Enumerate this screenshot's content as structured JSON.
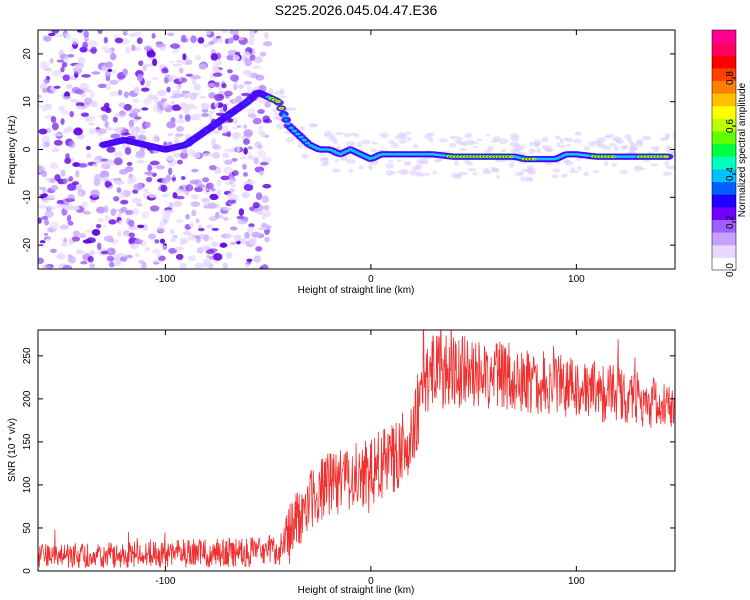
{
  "title": "S225.2026.045.04.47.E36",
  "chart_data": [
    {
      "type": "heatmap",
      "name": "spectrogram",
      "xlabel": "Height of straight line (km)",
      "ylabel": "Frequency (Hz)",
      "xlim": [
        -162,
        148
      ],
      "ylim": [
        -25,
        25
      ],
      "xticks": [
        -100,
        0,
        100
      ],
      "xtick_labels": [
        "-100",
        "0",
        "100"
      ],
      "yticks": [
        20,
        10,
        0,
        -10,
        -20
      ],
      "ytick_labels": [
        "20",
        "10",
        "0",
        "-10",
        "-20"
      ],
      "ridge": {
        "x": [
          -130,
          -120,
          -110,
          -100,
          -90,
          -80,
          -70,
          -60,
          -55,
          -50,
          -45,
          -40,
          -35,
          -30,
          -25,
          -20,
          -15,
          -10,
          -5,
          0,
          5,
          10,
          20,
          30,
          40,
          50,
          60,
          70,
          75,
          80,
          85,
          90,
          95,
          100,
          110,
          120,
          130,
          145
        ],
        "y": [
          1,
          2,
          1,
          0,
          1,
          4,
          7,
          10,
          12,
          11,
          10,
          5,
          3,
          1,
          0,
          0,
          -1,
          0,
          -1,
          -2,
          -1,
          -1,
          -1,
          -1,
          -1.5,
          -1.5,
          -1.5,
          -1.5,
          -2,
          -2,
          -2,
          -2,
          -1,
          -1,
          -1.5,
          -1.5,
          -1.5,
          -1.5
        ]
      },
      "colorbar": {
        "label": "Normalized spectral amplitude",
        "range": [
          0,
          1
        ],
        "ticks": [
          0.0,
          0.2,
          0.4,
          0.6,
          0.8
        ],
        "tick_labels": [
          "0.0",
          "0.2",
          "0.4",
          "0.6",
          "0.8"
        ],
        "colors": [
          "#ffffff",
          "#c8a8ff",
          "#8000ff",
          "#0000ff",
          "#00c0ff",
          "#00ff00",
          "#ffff00",
          "#ff8000",
          "#ff0000",
          "#ff0080"
        ]
      }
    },
    {
      "type": "line",
      "name": "snr",
      "xlabel": "Height of straight line (km)",
      "ylabel": "SNR (10 * v/v)",
      "xlim": [
        -162,
        148
      ],
      "ylim": [
        0,
        280
      ],
      "xticks": [
        -100,
        0,
        100
      ],
      "xtick_labels": [
        "-100",
        "0",
        "100"
      ],
      "yticks": [
        0,
        50,
        100,
        150,
        200,
        250
      ],
      "ytick_labels": [
        "0",
        "50",
        "100",
        "150",
        "200",
        "250"
      ],
      "color": "#f03030",
      "envelope": {
        "x": [
          -162,
          -140,
          -120,
          -100,
          -80,
          -60,
          -45,
          -40,
          -30,
          -20,
          -10,
          0,
          10,
          18,
          22,
          25,
          30,
          40,
          50,
          60,
          70,
          80,
          90,
          100,
          110,
          120,
          130,
          140,
          148
        ],
        "y": [
          18,
          18,
          19,
          20,
          21,
          22,
          25,
          40,
          85,
          100,
          110,
          115,
          130,
          150,
          175,
          220,
          230,
          232,
          230,
          228,
          225,
          220,
          215,
          212,
          208,
          205,
          200,
          195,
          192
        ]
      },
      "noise_amplitude": {
        "x": [
          -162,
          -45,
          -40,
          25,
          148
        ],
        "y": [
          14,
          18,
          35,
          45,
          30
        ]
      }
    }
  ]
}
